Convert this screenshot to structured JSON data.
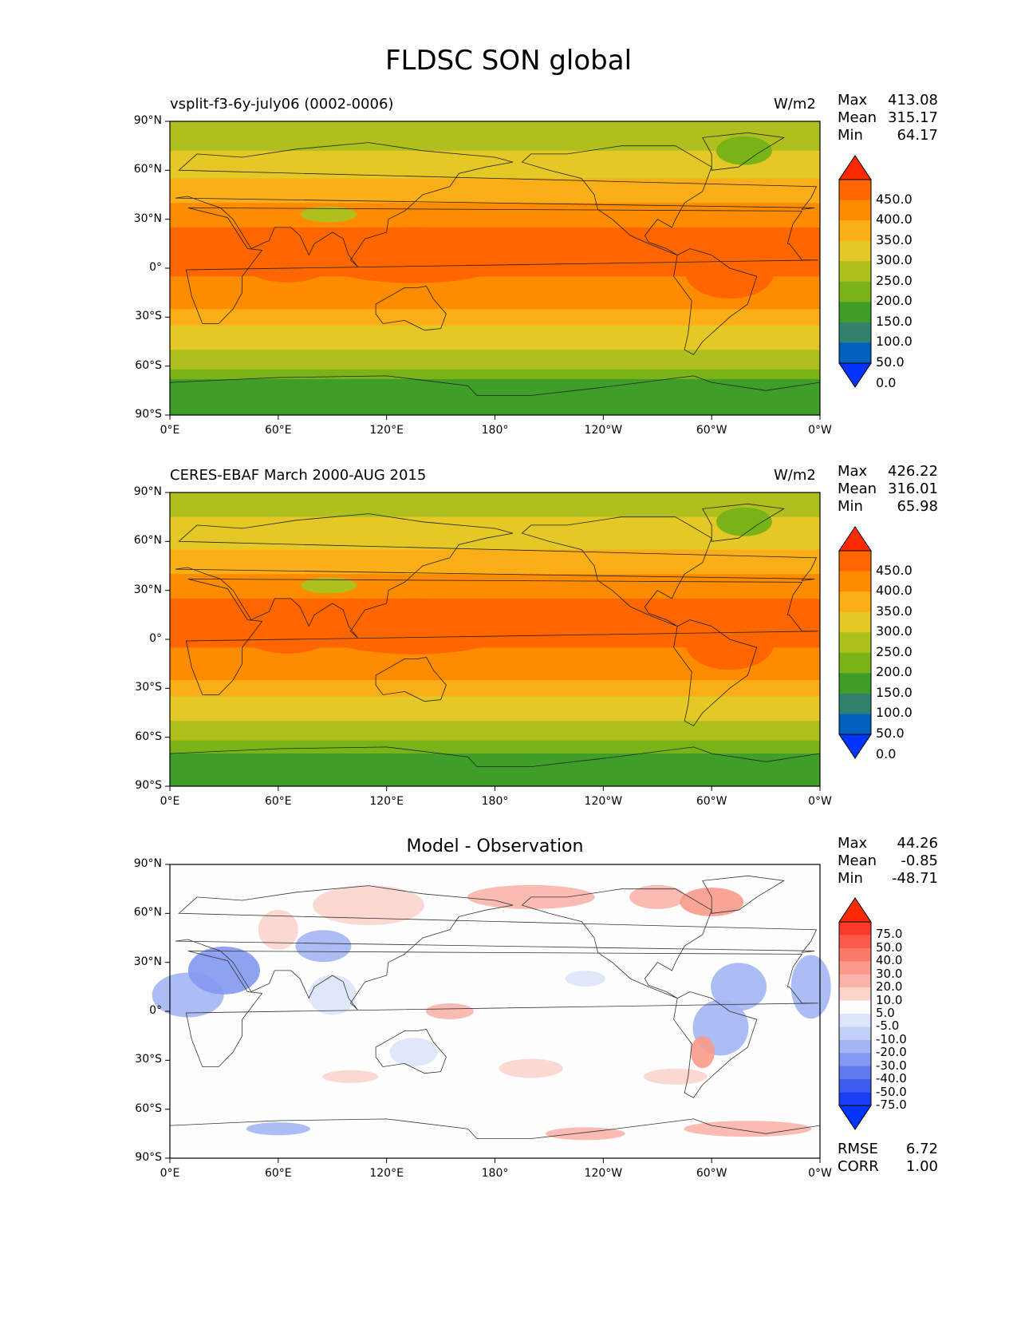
{
  "figure": {
    "title": "FLDSC SON global"
  },
  "panels": [
    {
      "id": "model",
      "left_label": "vsplit-f3-6y-july06 (0002-0006)",
      "right_label": "W/m2",
      "stats": [
        {
          "label": "Max",
          "value": "413.08"
        },
        {
          "label": "Mean",
          "value": "315.17"
        },
        {
          "label": "Min",
          "value": "64.17"
        }
      ]
    },
    {
      "id": "obs",
      "left_label": "CERES-EBAF March 2000-AUG 2015",
      "right_label": "W/m2",
      "stats": [
        {
          "label": "Max",
          "value": "426.22"
        },
        {
          "label": "Mean",
          "value": "316.01"
        },
        {
          "label": "Min",
          "value": "65.98"
        }
      ]
    },
    {
      "id": "diff",
      "center_label": "Model - Observation",
      "stats": [
        {
          "label": "Max",
          "value": "44.26"
        },
        {
          "label": "Mean",
          "value": "-0.85"
        },
        {
          "label": "Min",
          "value": "-48.71"
        }
      ],
      "footer_stats": [
        {
          "label": "RMSE",
          "value": "6.72"
        },
        {
          "label": "CORR",
          "value": "1.00"
        }
      ]
    }
  ],
  "axes": {
    "lat_ticks": [
      "90°N",
      "60°N",
      "30°N",
      "0°",
      "30°S",
      "60°S",
      "90°S"
    ],
    "lon_ticks": [
      "0°E",
      "60°E",
      "120°E",
      "180°",
      "120°W",
      "60°W",
      "0°W"
    ]
  },
  "colorbars": {
    "absolute": {
      "levels": [
        "450.0",
        "400.0",
        "350.0",
        "300.0",
        "250.0",
        "200.0",
        "150.0",
        "100.0",
        "50.0",
        "0.0"
      ],
      "colors": [
        "#ff2a00",
        "#ff6600",
        "#ff8c00",
        "#fbae17",
        "#e3c826",
        "#aebf1e",
        "#7ab318",
        "#3f9e28",
        "#32806e",
        "#0061c1",
        "#0035ff"
      ]
    },
    "difference": {
      "levels": [
        "75.0",
        "50.0",
        "40.0",
        "30.0",
        "20.0",
        "10.0",
        "5.0",
        "-5.0",
        "-10.0",
        "-20.0",
        "-30.0",
        "-40.0",
        "-50.0",
        "-75.0"
      ],
      "colors": [
        "#ff2a00",
        "#fd3a2a",
        "#fb5a4c",
        "#fa7a6a",
        "#f99a8a",
        "#f9b5aa",
        "#fbd4cc",
        "#fefefe",
        "#dde4fb",
        "#c4cff7",
        "#a3b5f4",
        "#8398f1",
        "#6079ef",
        "#3e5df0",
        "#1c3ff5",
        "#0035ff"
      ]
    }
  },
  "chart_data": [
    {
      "type": "heatmap",
      "title": "vsplit-f3-6y-july06 (0002-0006)",
      "units": "W/m2",
      "x_axis": "longitude",
      "y_axis": "latitude",
      "xlim": [
        0,
        360
      ],
      "ylim": [
        -90,
        90
      ],
      "bands": [
        {
          "lat_from": 90,
          "lat_to": 72,
          "value": 200
        },
        {
          "lat_from": 72,
          "lat_to": 55,
          "value": 250
        },
        {
          "lat_from": 55,
          "lat_to": 40,
          "value": 300
        },
        {
          "lat_from": 40,
          "lat_to": 25,
          "value": 350
        },
        {
          "lat_from": 25,
          "lat_to": -5,
          "value": 400
        },
        {
          "lat_from": -5,
          "lat_to": -25,
          "value": 350
        },
        {
          "lat_from": -25,
          "lat_to": -35,
          "value": 300
        },
        {
          "lat_from": -35,
          "lat_to": -50,
          "value": 250
        },
        {
          "lat_from": -50,
          "lat_to": -62,
          "value": 200
        },
        {
          "lat_from": -62,
          "lat_to": -68,
          "value": 150
        },
        {
          "lat_from": -68,
          "lat_to": -90,
          "value": 100
        }
      ],
      "max": 413.08,
      "mean": 315.17,
      "min": 64.17
    },
    {
      "type": "heatmap",
      "title": "CERES-EBAF March 2000-AUG 2015",
      "units": "W/m2",
      "x_axis": "longitude",
      "y_axis": "latitude",
      "xlim": [
        0,
        360
      ],
      "ylim": [
        -90,
        90
      ],
      "bands": [
        {
          "lat_from": 90,
          "lat_to": 75,
          "value": 200
        },
        {
          "lat_from": 75,
          "lat_to": 55,
          "value": 250
        },
        {
          "lat_from": 55,
          "lat_to": 40,
          "value": 300
        },
        {
          "lat_from": 40,
          "lat_to": 25,
          "value": 350
        },
        {
          "lat_from": 25,
          "lat_to": -5,
          "value": 400
        },
        {
          "lat_from": -5,
          "lat_to": -25,
          "value": 350
        },
        {
          "lat_from": -25,
          "lat_to": -35,
          "value": 300
        },
        {
          "lat_from": -35,
          "lat_to": -50,
          "value": 250
        },
        {
          "lat_from": -50,
          "lat_to": -62,
          "value": 200
        },
        {
          "lat_from": -62,
          "lat_to": -70,
          "value": 150
        },
        {
          "lat_from": -70,
          "lat_to": -90,
          "value": 100
        }
      ],
      "max": 426.22,
      "mean": 316.01,
      "min": 65.98
    },
    {
      "type": "heatmap",
      "title": "Model - Observation",
      "x_axis": "longitude",
      "y_axis": "latitude",
      "xlim": [
        0,
        360
      ],
      "ylim": [
        -90,
        90
      ],
      "max": 44.26,
      "mean": -0.85,
      "min": -48.71,
      "rmse": 6.72,
      "corr": 1.0
    }
  ]
}
